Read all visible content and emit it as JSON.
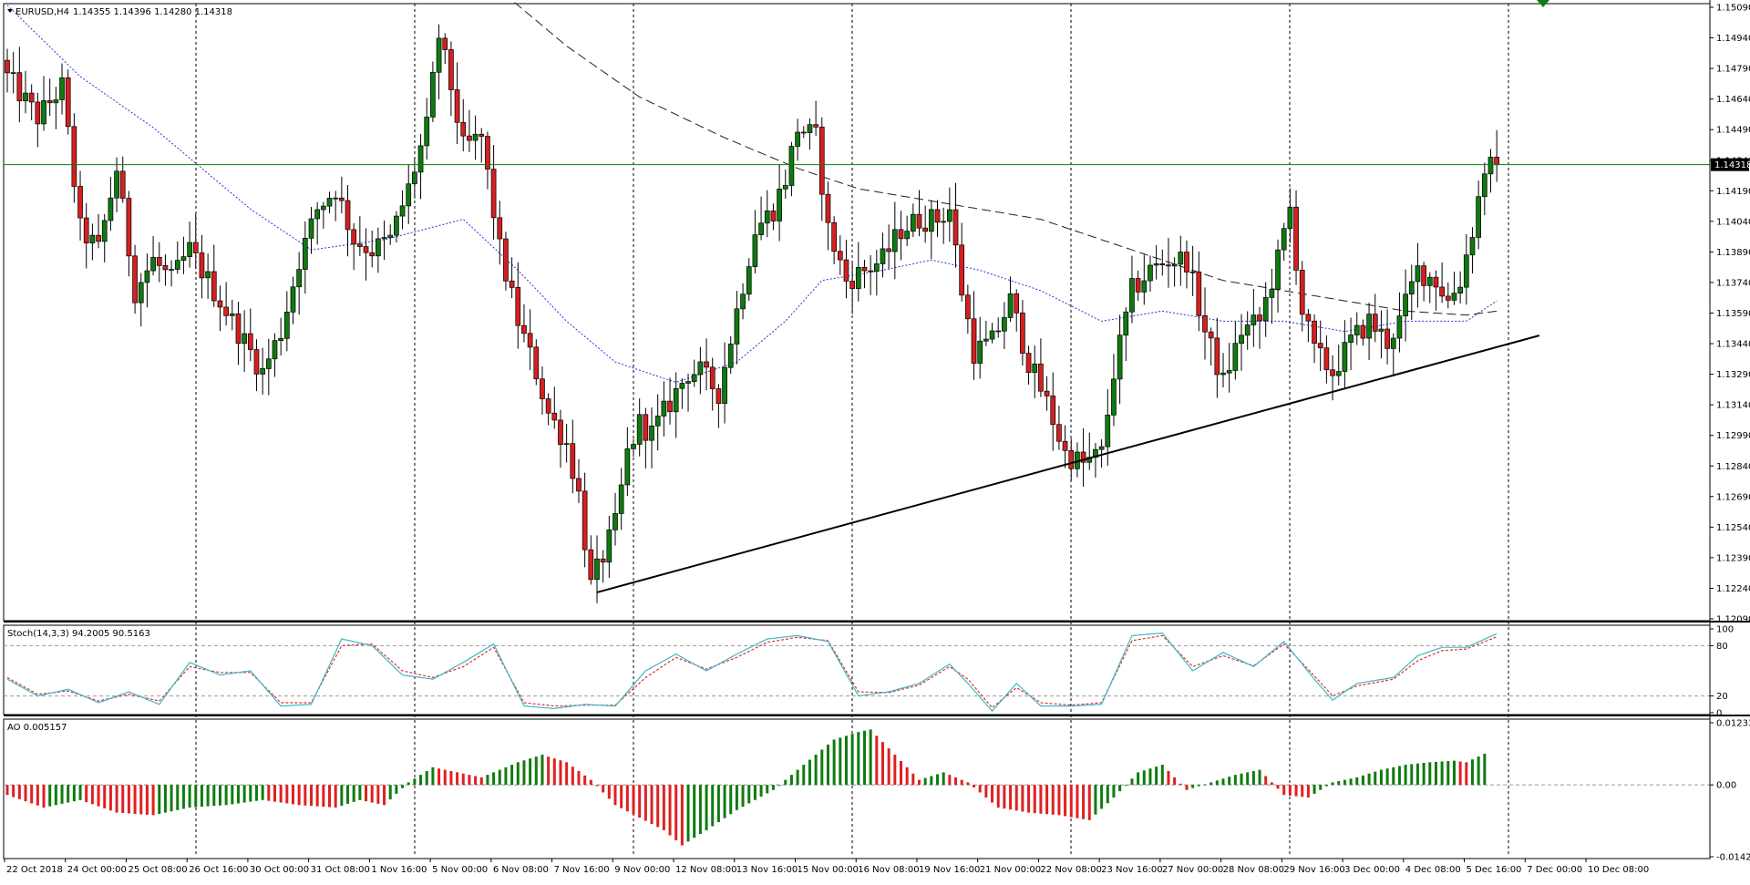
{
  "chart_data": [
    {
      "type": "candlestick",
      "symbol_label": "EURUSD,H4",
      "ohlc_label": "1.14355 1.14396 1.14280 1.14318",
      "current_price": 1.14318,
      "current_price_label": "1.14318",
      "ylim": [
        1.1209,
        1.1509
      ],
      "y_ticks": [
        "1.15090",
        "1.14940",
        "1.14790",
        "1.14640",
        "1.14490",
        "1.14340",
        "1.14190",
        "1.14040",
        "1.13890",
        "1.13740",
        "1.13590",
        "1.13440",
        "1.13290",
        "1.13140",
        "1.12990",
        "1.12840",
        "1.12690",
        "1.12540",
        "1.12390",
        "1.12240",
        "1.12090"
      ],
      "x_ticks": [
        "22 Oct 2018",
        "24 Oct 00:00",
        "25 Oct 08:00",
        "26 Oct 16:00",
        "30 Oct 00:00",
        "31 Oct 08:00",
        "1 Nov 16:00",
        "5 Nov 00:00",
        "6 Nov 08:00",
        "7 Nov 16:00",
        "9 Nov 00:00",
        "12 Nov 08:00",
        "13 Nov 16:00",
        "15 Nov 00:00",
        "16 Nov 08:00",
        "19 Nov 16:00",
        "21 Nov 00:00",
        "22 Nov 08:00",
        "23 Nov 16:00",
        "27 Nov 00:00",
        "28 Nov 08:00",
        "29 Nov 16:00",
        "3 Dec 00:00",
        "4 Dec 08:00",
        "5 Dec 16:00",
        "7 Dec 00:00",
        "10 Dec 08:00"
      ],
      "close_anchors": [
        {
          "bar": 0,
          "close": 1.1475
        },
        {
          "bar": 5,
          "close": 1.1455
        },
        {
          "bar": 9,
          "close": 1.147
        },
        {
          "bar": 12,
          "close": 1.14
        },
        {
          "bar": 15,
          "close": 1.139
        },
        {
          "bar": 18,
          "close": 1.143
        },
        {
          "bar": 21,
          "close": 1.137
        },
        {
          "bar": 24,
          "close": 1.1385
        },
        {
          "bar": 27,
          "close": 1.1375
        },
        {
          "bar": 30,
          "close": 1.139
        },
        {
          "bar": 33,
          "close": 1.1375
        },
        {
          "bar": 36,
          "close": 1.136
        },
        {
          "bar": 39,
          "close": 1.1345
        },
        {
          "bar": 42,
          "close": 1.133
        },
        {
          "bar": 45,
          "close": 1.135
        },
        {
          "bar": 48,
          "close": 1.1385
        },
        {
          "bar": 51,
          "close": 1.141
        },
        {
          "bar": 54,
          "close": 1.142
        },
        {
          "bar": 57,
          "close": 1.1395
        },
        {
          "bar": 60,
          "close": 1.139
        },
        {
          "bar": 63,
          "close": 1.1395
        },
        {
          "bar": 66,
          "close": 1.142
        },
        {
          "bar": 69,
          "close": 1.145
        },
        {
          "bar": 71,
          "close": 1.1495
        },
        {
          "bar": 73,
          "close": 1.147
        },
        {
          "bar": 75,
          "close": 1.144
        },
        {
          "bar": 78,
          "close": 1.1445
        },
        {
          "bar": 81,
          "close": 1.139
        },
        {
          "bar": 84,
          "close": 1.1355
        },
        {
          "bar": 87,
          "close": 1.133
        },
        {
          "bar": 89,
          "close": 1.131
        },
        {
          "bar": 92,
          "close": 1.1295
        },
        {
          "bar": 94,
          "close": 1.127
        },
        {
          "bar": 96,
          "close": 1.1225
        },
        {
          "bar": 98,
          "close": 1.124
        },
        {
          "bar": 100,
          "close": 1.1255
        },
        {
          "bar": 102,
          "close": 1.129
        },
        {
          "bar": 104,
          "close": 1.1305
        },
        {
          "bar": 106,
          "close": 1.13
        },
        {
          "bar": 109,
          "close": 1.1315
        },
        {
          "bar": 112,
          "close": 1.133
        },
        {
          "bar": 114,
          "close": 1.133
        },
        {
          "bar": 117,
          "close": 1.132
        },
        {
          "bar": 120,
          "close": 1.136
        },
        {
          "bar": 123,
          "close": 1.14
        },
        {
          "bar": 126,
          "close": 1.141
        },
        {
          "bar": 128,
          "close": 1.1425
        },
        {
          "bar": 130,
          "close": 1.145
        },
        {
          "bar": 133,
          "close": 1.1445
        },
        {
          "bar": 135,
          "close": 1.14
        },
        {
          "bar": 138,
          "close": 1.1375
        },
        {
          "bar": 141,
          "close": 1.138
        },
        {
          "bar": 144,
          "close": 1.1385
        },
        {
          "bar": 147,
          "close": 1.14
        },
        {
          "bar": 150,
          "close": 1.1405
        },
        {
          "bar": 153,
          "close": 1.1405
        },
        {
          "bar": 155,
          "close": 1.141
        },
        {
          "bar": 157,
          "close": 1.137
        },
        {
          "bar": 159,
          "close": 1.134
        },
        {
          "bar": 162,
          "close": 1.1345
        },
        {
          "bar": 165,
          "close": 1.1365
        },
        {
          "bar": 168,
          "close": 1.1335
        },
        {
          "bar": 171,
          "close": 1.1315
        },
        {
          "bar": 174,
          "close": 1.129
        },
        {
          "bar": 177,
          "close": 1.1285
        },
        {
          "bar": 180,
          "close": 1.129
        },
        {
          "bar": 182,
          "close": 1.133
        },
        {
          "bar": 185,
          "close": 1.137
        },
        {
          "bar": 188,
          "close": 1.138
        },
        {
          "bar": 191,
          "close": 1.1385
        },
        {
          "bar": 194,
          "close": 1.1385
        },
        {
          "bar": 197,
          "close": 1.135
        },
        {
          "bar": 200,
          "close": 1.1325
        },
        {
          "bar": 203,
          "close": 1.135
        },
        {
          "bar": 206,
          "close": 1.1355
        },
        {
          "bar": 209,
          "close": 1.1385
        },
        {
          "bar": 211,
          "close": 1.141
        },
        {
          "bar": 213,
          "close": 1.136
        },
        {
          "bar": 215,
          "close": 1.134
        },
        {
          "bar": 218,
          "close": 1.133
        },
        {
          "bar": 221,
          "close": 1.1345
        },
        {
          "bar": 224,
          "close": 1.1355
        },
        {
          "bar": 227,
          "close": 1.1345
        },
        {
          "bar": 229,
          "close": 1.1355
        },
        {
          "bar": 232,
          "close": 1.138
        },
        {
          "bar": 235,
          "close": 1.1375
        },
        {
          "bar": 237,
          "close": 1.1365
        },
        {
          "bar": 239,
          "close": 1.1375
        },
        {
          "bar": 241,
          "close": 1.14
        },
        {
          "bar": 243,
          "close": 1.143
        },
        {
          "bar": 245,
          "close": 1.14318
        }
      ],
      "moving_averages": [
        {
          "style": "dotted",
          "color": "#2f2fd8",
          "period": "short",
          "points": [
            [
              0,
              1.151
            ],
            [
              12,
              1.1475
            ],
            [
              24,
              1.145
            ],
            [
              40,
              1.141
            ],
            [
              50,
              1.139
            ],
            [
              62,
              1.1395
            ],
            [
              75,
              1.1405
            ],
            [
              84,
              1.138
            ],
            [
              92,
              1.1355
            ],
            [
              100,
              1.1335
            ],
            [
              110,
              1.1325
            ],
            [
              120,
              1.1335
            ],
            [
              128,
              1.1355
            ],
            [
              134,
              1.1375
            ],
            [
              144,
              1.138
            ],
            [
              152,
              1.1385
            ],
            [
              160,
              1.138
            ],
            [
              170,
              1.137
            ],
            [
              180,
              1.1355
            ],
            [
              190,
              1.136
            ],
            [
              200,
              1.1355
            ],
            [
              210,
              1.1355
            ],
            [
              220,
              1.135
            ],
            [
              230,
              1.1355
            ],
            [
              240,
              1.1355
            ],
            [
              245,
              1.1365
            ]
          ]
        },
        {
          "style": "dashed",
          "color": "#202020",
          "period": "long",
          "points": [
            [
              80,
              1.152
            ],
            [
              92,
              1.149
            ],
            [
              104,
              1.1465
            ],
            [
              118,
              1.1445
            ],
            [
              130,
              1.143
            ],
            [
              140,
              1.142
            ],
            [
              150,
              1.1415
            ],
            [
              160,
              1.141
            ],
            [
              170,
              1.1405
            ],
            [
              180,
              1.1395
            ],
            [
              190,
              1.1385
            ],
            [
              200,
              1.1375
            ],
            [
              210,
              1.137
            ],
            [
              220,
              1.1365
            ],
            [
              230,
              1.136
            ],
            [
              240,
              1.1358
            ],
            [
              245,
              1.136
            ]
          ]
        }
      ],
      "trendline": {
        "from": {
          "bar": 97,
          "value": 1.1222
        },
        "to": {
          "bar": 252,
          "value": 1.1348
        }
      },
      "current_marker_color": "#107b10"
    },
    {
      "type": "line",
      "name": "Stochastic",
      "label": "Stoch(14,3,3) 94.2005 90.5163",
      "ylim": [
        0,
        100
      ],
      "y_ticks": [
        "100",
        "80",
        "20",
        "0"
      ],
      "levels": [
        80,
        20
      ],
      "main_color": "#3cb8c8",
      "signal_color": "#e03030",
      "main_anchors": [
        [
          0,
          40
        ],
        [
          5,
          20
        ],
        [
          10,
          28
        ],
        [
          15,
          12
        ],
        [
          20,
          25
        ],
        [
          25,
          10
        ],
        [
          30,
          60
        ],
        [
          35,
          45
        ],
        [
          40,
          50
        ],
        [
          45,
          8
        ],
        [
          50,
          10
        ],
        [
          55,
          88
        ],
        [
          60,
          80
        ],
        [
          65,
          45
        ],
        [
          70,
          40
        ],
        [
          75,
          60
        ],
        [
          80,
          82
        ],
        [
          85,
          8
        ],
        [
          90,
          5
        ],
        [
          95,
          10
        ],
        [
          100,
          8
        ],
        [
          105,
          50
        ],
        [
          110,
          70
        ],
        [
          115,
          50
        ],
        [
          120,
          70
        ],
        [
          125,
          88
        ],
        [
          130,
          92
        ],
        [
          135,
          85
        ],
        [
          140,
          20
        ],
        [
          145,
          25
        ],
        [
          150,
          35
        ],
        [
          155,
          58
        ],
        [
          158,
          35
        ],
        [
          162,
          2
        ],
        [
          166,
          35
        ],
        [
          170,
          8
        ],
        [
          175,
          8
        ],
        [
          180,
          10
        ],
        [
          185,
          92
        ],
        [
          190,
          95
        ],
        [
          195,
          50
        ],
        [
          200,
          72
        ],
        [
          205,
          55
        ],
        [
          210,
          85
        ],
        [
          215,
          40
        ],
        [
          218,
          15
        ],
        [
          222,
          35
        ],
        [
          228,
          42
        ],
        [
          232,
          68
        ],
        [
          236,
          78
        ],
        [
          240,
          78
        ],
        [
          245,
          94.2
        ]
      ],
      "signal_anchors": [
        [
          0,
          42
        ],
        [
          5,
          22
        ],
        [
          10,
          26
        ],
        [
          15,
          14
        ],
        [
          20,
          22
        ],
        [
          25,
          14
        ],
        [
          30,
          55
        ],
        [
          35,
          48
        ],
        [
          40,
          48
        ],
        [
          45,
          12
        ],
        [
          50,
          12
        ],
        [
          55,
          80
        ],
        [
          60,
          82
        ],
        [
          65,
          50
        ],
        [
          70,
          42
        ],
        [
          75,
          55
        ],
        [
          80,
          78
        ],
        [
          85,
          12
        ],
        [
          90,
          8
        ],
        [
          95,
          9
        ],
        [
          100,
          9
        ],
        [
          105,
          42
        ],
        [
          110,
          66
        ],
        [
          115,
          52
        ],
        [
          120,
          66
        ],
        [
          125,
          84
        ],
        [
          130,
          90
        ],
        [
          135,
          86
        ],
        [
          140,
          25
        ],
        [
          145,
          24
        ],
        [
          150,
          33
        ],
        [
          155,
          55
        ],
        [
          158,
          40
        ],
        [
          162,
          6
        ],
        [
          166,
          30
        ],
        [
          170,
          12
        ],
        [
          175,
          9
        ],
        [
          180,
          12
        ],
        [
          185,
          86
        ],
        [
          190,
          92
        ],
        [
          195,
          55
        ],
        [
          200,
          68
        ],
        [
          205,
          56
        ],
        [
          210,
          82
        ],
        [
          215,
          44
        ],
        [
          218,
          20
        ],
        [
          222,
          32
        ],
        [
          228,
          40
        ],
        [
          232,
          62
        ],
        [
          236,
          74
        ],
        [
          240,
          76
        ],
        [
          245,
          90.5
        ]
      ]
    },
    {
      "type": "bar",
      "name": "Awesome Oscillator",
      "label": "AO 0.005157",
      "ylim": [
        -0.014262,
        0.012338
      ],
      "y_ticks": [
        "0.012338",
        "0.00",
        "-0.014262"
      ],
      "up_color": "#107b10",
      "down_color": "#e02020",
      "anchors": [
        [
          0,
          -0.002
        ],
        [
          6,
          -0.0045
        ],
        [
          12,
          -0.003
        ],
        [
          18,
          -0.0055
        ],
        [
          24,
          -0.006
        ],
        [
          30,
          -0.0045
        ],
        [
          36,
          -0.004
        ],
        [
          42,
          -0.003
        ],
        [
          48,
          -0.004
        ],
        [
          54,
          -0.0045
        ],
        [
          58,
          -0.003
        ],
        [
          62,
          -0.004
        ],
        [
          66,
          0.0005
        ],
        [
          70,
          0.0035
        ],
        [
          74,
          0.0025
        ],
        [
          78,
          0.0015
        ],
        [
          84,
          0.0045
        ],
        [
          88,
          0.006
        ],
        [
          92,
          0.0045
        ],
        [
          96,
          0.001
        ],
        [
          100,
          -0.004
        ],
        [
          104,
          -0.0065
        ],
        [
          108,
          -0.009
        ],
        [
          111,
          -0.012
        ],
        [
          115,
          -0.009
        ],
        [
          120,
          -0.005
        ],
        [
          126,
          -0.001
        ],
        [
          132,
          0.005
        ],
        [
          136,
          0.009
        ],
        [
          140,
          0.0105
        ],
        [
          142,
          0.011
        ],
        [
          146,
          0.006
        ],
        [
          150,
          0.001
        ],
        [
          154,
          0.0025
        ],
        [
          158,
          0.0005
        ],
        [
          163,
          -0.0045
        ],
        [
          168,
          -0.0055
        ],
        [
          173,
          -0.006
        ],
        [
          178,
          -0.007
        ],
        [
          182,
          -0.0025
        ],
        [
          186,
          0.0025
        ],
        [
          190,
          0.004
        ],
        [
          194,
          -0.001
        ],
        [
          198,
          0.0005
        ],
        [
          202,
          0.002
        ],
        [
          206,
          0.003
        ],
        [
          210,
          -0.002
        ],
        [
          214,
          -0.0025
        ],
        [
          218,
          0.0005
        ],
        [
          222,
          0.0015
        ],
        [
          226,
          0.003
        ],
        [
          230,
          0.004
        ],
        [
          234,
          0.0045
        ],
        [
          238,
          0.0048
        ],
        [
          240,
          0.0045
        ],
        [
          243,
          0.0062
        ]
      ]
    }
  ]
}
